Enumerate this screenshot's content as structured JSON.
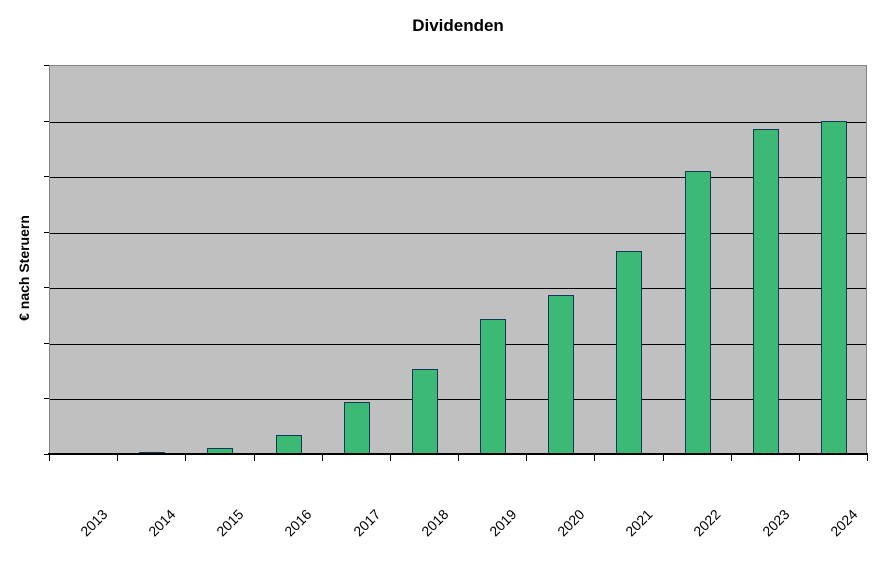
{
  "chart_data": {
    "type": "bar",
    "title": "Dividenden",
    "ylabel": "€ nach Steruern",
    "xlabel": "",
    "categories": [
      "2013",
      "2014",
      "2015",
      "2016",
      "2017",
      "2018",
      "2019",
      "2020",
      "2021",
      "2022",
      "2023",
      "2024"
    ],
    "series": [
      {
        "name": "Dividenden",
        "values": [
          0,
          0.05,
          0.13,
          0.36,
          0.95,
          1.55,
          2.45,
          2.88,
          3.67,
          5.11,
          5.86,
          6.02
        ]
      }
    ],
    "y_axis": {
      "min": 0,
      "max": 7,
      "gridline_step": 1,
      "tick_labels_visible": false
    },
    "x_axis": {
      "label_rotation_deg": 45,
      "ticks_between_categories": true
    },
    "legend_visible": false,
    "grid": "horizontal",
    "colors": {
      "bar_fill": "#3db976",
      "bar_border": "#16365c",
      "plot_background": "#c0c0c0",
      "gridline": "#000000",
      "plot_border": "#848484",
      "axis_line": "#000000",
      "text": "#000000",
      "page_background": "#ffffff"
    }
  }
}
